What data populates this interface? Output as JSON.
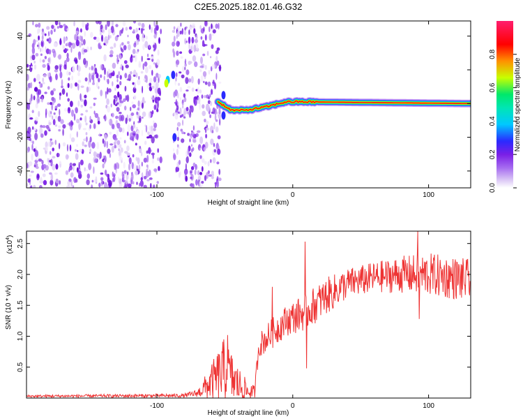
{
  "title": "C2E5.2025.182.01.46.G32",
  "chart_data": [
    {
      "type": "heatmap",
      "xlabel": "Height of straight line (km)",
      "ylabel": "Frequency (Hz)",
      "xlim": [
        -196,
        131
      ],
      "ylim": [
        -50,
        49
      ],
      "x_ticks": [
        -100,
        0,
        100
      ],
      "y_ticks": [
        -40,
        -20,
        0,
        20,
        40
      ],
      "colorbar": {
        "label": "Normalized spectral amplitude",
        "range": [
          0,
          1
        ],
        "ticks": [
          "0.0",
          "0.2",
          "0.4",
          "0.6",
          "0.8"
        ],
        "colormap": [
          "#ffffff",
          "#c8a8f0",
          "#7a1fe6",
          "#2a2aff",
          "#00c8ff",
          "#00e86a",
          "#c8ff00",
          "#ff9000",
          "#ff0000",
          "#ff1e6e"
        ]
      },
      "signal_line": {
        "description_points": [
          {
            "x": -55,
            "y": 1
          },
          {
            "x": -45,
            "y": -4
          },
          {
            "x": -35,
            "y": -4
          },
          {
            "x": -20,
            "y": -2
          },
          {
            "x": -5,
            "y": 1
          },
          {
            "x": 10,
            "y": 1
          },
          {
            "x": 131,
            "y": 0
          }
        ]
      },
      "noise_regions": [
        [
          -196,
          -97
        ],
        [
          -88,
          -53
        ]
      ]
    },
    {
      "type": "line",
      "xlabel": "Height of straight line (km)",
      "ylabel": "SNR (10 * v/v)",
      "y_multiplier": "(x10",
      "y_multiplier_exp": "4",
      "xlim": [
        -196,
        131
      ],
      "ylim": [
        0,
        2.7
      ],
      "x_ticks": [
        -100,
        0,
        100
      ],
      "y_ticks": [
        "0.5",
        "1.0",
        "1.5",
        "2.0",
        "2.5"
      ],
      "color": "#ee3333",
      "envelope": [
        {
          "x": -196,
          "base": 0.03,
          "amp": 0.02
        },
        {
          "x": -80,
          "base": 0.04,
          "amp": 0.03
        },
        {
          "x": -70,
          "base": 0.08,
          "amp": 0.06
        },
        {
          "x": -60,
          "base": 0.25,
          "amp": 0.3
        },
        {
          "x": -50,
          "base": 0.45,
          "amp": 0.55
        },
        {
          "x": -42,
          "base": 0.25,
          "amp": 0.35
        },
        {
          "x": -33,
          "base": 0.1,
          "amp": 0.15
        },
        {
          "x": -28,
          "base": 0.1,
          "amp": 0.1
        },
        {
          "x": -25,
          "base": 0.85,
          "amp": 0.2
        },
        {
          "x": -15,
          "base": 1.05,
          "amp": 0.25
        },
        {
          "x": -5,
          "base": 1.25,
          "amp": 0.25
        },
        {
          "x": 10,
          "base": 1.4,
          "amp": 0.3
        },
        {
          "x": 25,
          "base": 1.65,
          "amp": 0.3
        },
        {
          "x": 40,
          "base": 1.85,
          "amp": 0.25
        },
        {
          "x": 60,
          "base": 1.95,
          "amp": 0.25
        },
        {
          "x": 80,
          "base": 2.0,
          "amp": 0.3
        },
        {
          "x": 100,
          "base": 2.0,
          "amp": 0.35
        },
        {
          "x": 131,
          "base": 1.9,
          "amp": 0.35
        }
      ],
      "spikes": [
        {
          "x": -48,
          "y": 1.02
        },
        {
          "x": -15,
          "y": 1.8
        },
        {
          "x": 9,
          "y": 2.53
        },
        {
          "x": 10,
          "y": 0.48
        },
        {
          "x": 92,
          "y": 2.7
        },
        {
          "x": 93,
          "y": 1.28
        }
      ]
    }
  ]
}
